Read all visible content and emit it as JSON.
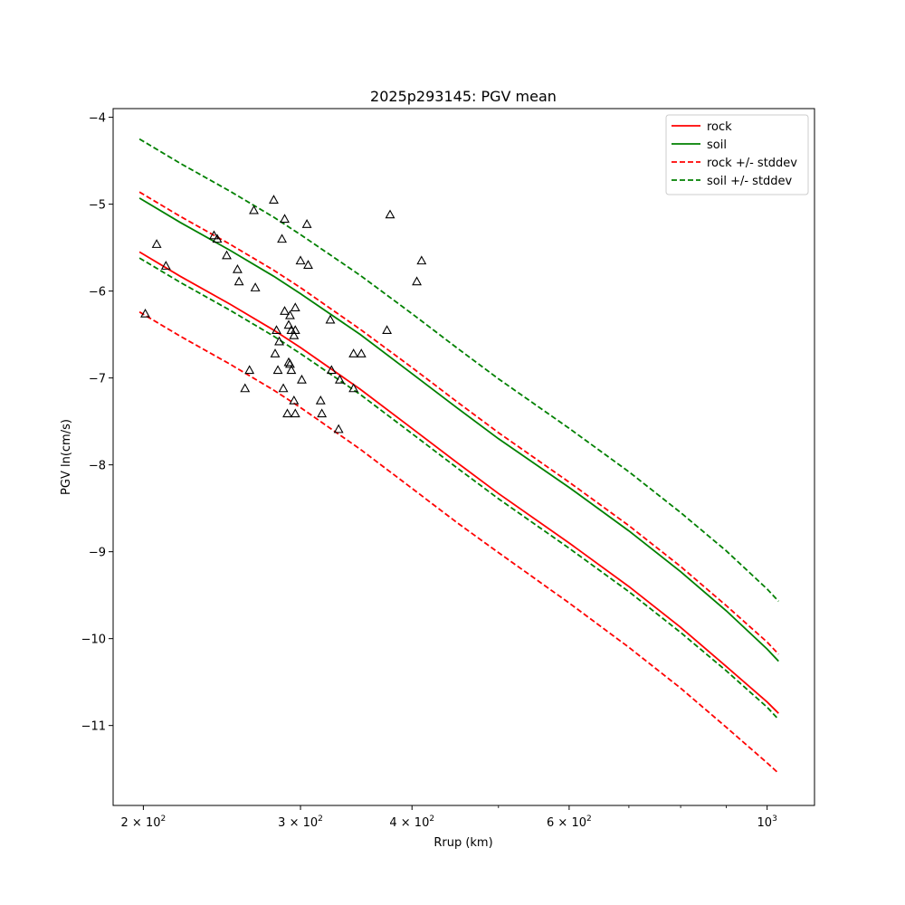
{
  "chart_data": {
    "type": "line",
    "title": "2025p293145: PGV mean",
    "xlabel": "Rrup (km)",
    "ylabel": "PGV ln(cm/s)",
    "xscale": "log",
    "xlim": [
      185,
      1130
    ],
    "ylim": [
      -11.92,
      -3.9
    ],
    "grid": false,
    "legend_position": "top-right",
    "x_ticks": [
      {
        "value": 200,
        "label_base": "2 × 10",
        "label_exp": "2"
      },
      {
        "value": 300,
        "label_base": "3 × 10",
        "label_exp": "2"
      },
      {
        "value": 400,
        "label_base": "4 × 10",
        "label_exp": "2"
      },
      {
        "value": 600,
        "label_base": "6 × 10",
        "label_exp": "2"
      },
      {
        "value": 1000,
        "label_base": "10",
        "label_exp": "3"
      }
    ],
    "x_minor_ticks": [
      500,
      700,
      800,
      900
    ],
    "y_ticks": [
      {
        "value": -4,
        "label": "−4"
      },
      {
        "value": -5,
        "label": "−5"
      },
      {
        "value": -6,
        "label": "−6"
      },
      {
        "value": -7,
        "label": "−7"
      },
      {
        "value": -8,
        "label": "−8"
      },
      {
        "value": -9,
        "label": "−9"
      },
      {
        "value": -10,
        "label": "−10"
      },
      {
        "value": -11,
        "label": "−11"
      }
    ],
    "x": [
      198,
      220,
      250,
      280,
      300,
      350,
      400,
      450,
      500,
      600,
      700,
      800,
      900,
      1000,
      1030
    ],
    "series": [
      {
        "name": "rock",
        "color": "#ff0000",
        "dash": "solid",
        "values": [
          -5.55,
          -5.83,
          -6.15,
          -6.45,
          -6.65,
          -7.13,
          -7.58,
          -7.98,
          -8.33,
          -8.9,
          -9.4,
          -9.87,
          -10.32,
          -10.73,
          -10.86
        ]
      },
      {
        "name": "soil",
        "color": "#008000",
        "dash": "solid",
        "values": [
          -4.93,
          -5.21,
          -5.53,
          -5.83,
          -6.03,
          -6.5,
          -6.95,
          -7.35,
          -7.7,
          -8.26,
          -8.76,
          -9.23,
          -9.68,
          -10.12,
          -10.26
        ]
      },
      {
        "name": "rock +/- stddev",
        "color": "#ff0000",
        "dash": "dashed",
        "values": [
          -4.86,
          -5.14,
          -5.46,
          -5.76,
          -5.96,
          -6.44,
          -6.88,
          -7.28,
          -7.63,
          -8.2,
          -8.7,
          -9.17,
          -9.62,
          -10.04,
          -10.18
        ]
      },
      {
        "name": "",
        "color": "#ff0000",
        "dash": "dashed",
        "values": [
          -6.24,
          -6.52,
          -6.84,
          -7.14,
          -7.34,
          -7.82,
          -8.27,
          -8.67,
          -9.01,
          -9.59,
          -10.1,
          -10.57,
          -11.02,
          -11.43,
          -11.55
        ]
      },
      {
        "name": "soil +/- stddev",
        "color": "#008000",
        "dash": "dashed",
        "values": [
          -4.25,
          -4.53,
          -4.85,
          -5.15,
          -5.35,
          -5.82,
          -6.26,
          -6.66,
          -7.01,
          -7.58,
          -8.08,
          -8.55,
          -8.99,
          -9.43,
          -9.57
        ]
      },
      {
        "name": "",
        "color": "#008000",
        "dash": "dashed",
        "values": [
          -5.62,
          -5.9,
          -6.22,
          -6.52,
          -6.72,
          -7.19,
          -7.64,
          -8.04,
          -8.39,
          -8.96,
          -9.46,
          -9.93,
          -10.37,
          -10.79,
          -10.93
        ]
      }
    ],
    "observations": {
      "marker": "triangle",
      "color": "#000000",
      "points": [
        [
          201,
          -6.26
        ],
        [
          207,
          -5.46
        ],
        [
          212,
          -5.71
        ],
        [
          240,
          -5.36
        ],
        [
          242,
          -5.4
        ],
        [
          248,
          -5.59
        ],
        [
          255,
          -5.75
        ],
        [
          256,
          -5.89
        ],
        [
          260,
          -7.12
        ],
        [
          263,
          -6.91
        ],
        [
          266,
          -5.07
        ],
        [
          267,
          -5.96
        ],
        [
          280,
          -4.95
        ],
        [
          281,
          -6.72
        ],
        [
          282,
          -6.45
        ],
        [
          283,
          -6.91
        ],
        [
          284,
          -6.58
        ],
        [
          286,
          -5.4
        ],
        [
          287,
          -7.12
        ],
        [
          288,
          -5.17
        ],
        [
          288,
          -6.23
        ],
        [
          290,
          -7.41
        ],
        [
          291,
          -6.82
        ],
        [
          291,
          -6.39
        ],
        [
          292,
          -6.28
        ],
        [
          292,
          -6.84
        ],
        [
          293,
          -6.91
        ],
        [
          293,
          -6.45
        ],
        [
          295,
          -6.51
        ],
        [
          295,
          -7.26
        ],
        [
          296,
          -7.41
        ],
        [
          296,
          -6.45
        ],
        [
          296,
          -6.19
        ],
        [
          300,
          -5.65
        ],
        [
          301,
          -7.02
        ],
        [
          305,
          -5.23
        ],
        [
          306,
          -5.7
        ],
        [
          316,
          -7.26
        ],
        [
          317,
          -7.41
        ],
        [
          324,
          -6.33
        ],
        [
          325,
          -6.91
        ],
        [
          331,
          -7.59
        ],
        [
          332,
          -7.02
        ],
        [
          344,
          -6.72
        ],
        [
          344,
          -7.12
        ],
        [
          351,
          -6.72
        ],
        [
          375,
          -6.45
        ],
        [
          378,
          -5.12
        ],
        [
          405,
          -5.89
        ],
        [
          410,
          -5.65
        ]
      ]
    }
  }
}
